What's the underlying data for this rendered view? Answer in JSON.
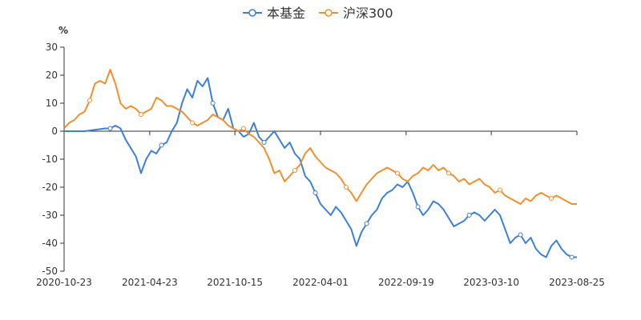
{
  "chart_data": {
    "type": "line",
    "title": "",
    "ylabel": "%",
    "xlabel": "",
    "ylim": [
      -50,
      30
    ],
    "yticks": [
      30,
      20,
      10,
      0,
      -10,
      -20,
      -30,
      -40,
      -50
    ],
    "xtick_labels": [
      "2020-10-23",
      "2021-04-23",
      "2021-10-15",
      "2022-04-01",
      "2022-09-19",
      "2023-03-10",
      "2023-08-25"
    ],
    "x_index_range": [
      0,
      100
    ],
    "xtick_index": [
      0,
      16.7,
      33.3,
      50,
      66.7,
      83.3,
      100
    ],
    "legend_position": "top-center",
    "series": [
      {
        "name": "本基金",
        "color": "#3b7fd8",
        "points": [
          [
            0,
            0
          ],
          [
            2,
            0
          ],
          [
            4,
            0
          ],
          [
            6,
            0.5
          ],
          [
            8,
            1
          ],
          [
            9,
            1
          ],
          [
            10,
            2
          ],
          [
            11,
            1
          ],
          [
            12,
            -3
          ],
          [
            13,
            -6
          ],
          [
            14,
            -9
          ],
          [
            15,
            -15
          ],
          [
            16,
            -10
          ],
          [
            17,
            -7
          ],
          [
            18,
            -8
          ],
          [
            19,
            -5
          ],
          [
            20,
            -4
          ],
          [
            21,
            0
          ],
          [
            22,
            3
          ],
          [
            23,
            10
          ],
          [
            24,
            15
          ],
          [
            25,
            12
          ],
          [
            26,
            18
          ],
          [
            27,
            16
          ],
          [
            28,
            19
          ],
          [
            29,
            10
          ],
          [
            30,
            5
          ],
          [
            31,
            4
          ],
          [
            32,
            8
          ],
          [
            33,
            1
          ],
          [
            34,
            0
          ],
          [
            35,
            -2
          ],
          [
            36,
            -1
          ],
          [
            37,
            3
          ],
          [
            38,
            -2
          ],
          [
            39,
            -4
          ],
          [
            40,
            -2
          ],
          [
            41,
            0
          ],
          [
            42,
            -3
          ],
          [
            43,
            -6
          ],
          [
            44,
            -4
          ],
          [
            45,
            -8
          ],
          [
            46,
            -10
          ],
          [
            47,
            -16
          ],
          [
            48,
            -18
          ],
          [
            49,
            -22
          ],
          [
            50,
            -26
          ],
          [
            51,
            -28
          ],
          [
            52,
            -30
          ],
          [
            53,
            -27
          ],
          [
            54,
            -29
          ],
          [
            55,
            -32
          ],
          [
            56,
            -35
          ],
          [
            57,
            -41
          ],
          [
            58,
            -36
          ],
          [
            59,
            -33
          ],
          [
            60,
            -30
          ],
          [
            61,
            -28
          ],
          [
            62,
            -24
          ],
          [
            63,
            -22
          ],
          [
            64,
            -21
          ],
          [
            65,
            -19
          ],
          [
            66,
            -20
          ],
          [
            67,
            -18
          ],
          [
            68,
            -22
          ],
          [
            69,
            -27
          ],
          [
            70,
            -30
          ],
          [
            71,
            -28
          ],
          [
            72,
            -25
          ],
          [
            73,
            -26
          ],
          [
            74,
            -28
          ],
          [
            75,
            -31
          ],
          [
            76,
            -34
          ],
          [
            77,
            -33
          ],
          [
            78,
            -32
          ],
          [
            79,
            -30
          ],
          [
            80,
            -29
          ],
          [
            81,
            -30
          ],
          [
            82,
            -32
          ],
          [
            83,
            -30
          ],
          [
            84,
            -28
          ],
          [
            85,
            -30
          ],
          [
            86,
            -35
          ],
          [
            87,
            -40
          ],
          [
            88,
            -38
          ],
          [
            89,
            -37
          ],
          [
            90,
            -40
          ],
          [
            91,
            -38
          ],
          [
            92,
            -42
          ],
          [
            93,
            -44
          ],
          [
            94,
            -45
          ],
          [
            95,
            -41
          ],
          [
            96,
            -39
          ],
          [
            97,
            -42
          ],
          [
            98,
            -44
          ],
          [
            99,
            -45
          ],
          [
            100,
            -45
          ]
        ]
      },
      {
        "name": "沪深300",
        "color": "#f28e2b",
        "points": [
          [
            0,
            1
          ],
          [
            1,
            3
          ],
          [
            2,
            4
          ],
          [
            3,
            6
          ],
          [
            4,
            7
          ],
          [
            5,
            11
          ],
          [
            6,
            17
          ],
          [
            7,
            18
          ],
          [
            8,
            17
          ],
          [
            9,
            22
          ],
          [
            10,
            17
          ],
          [
            11,
            10
          ],
          [
            12,
            8
          ],
          [
            13,
            9
          ],
          [
            14,
            8
          ],
          [
            15,
            6
          ],
          [
            16,
            7
          ],
          [
            17,
            8
          ],
          [
            18,
            12
          ],
          [
            19,
            11
          ],
          [
            20,
            9
          ],
          [
            21,
            9
          ],
          [
            22,
            8
          ],
          [
            23,
            7
          ],
          [
            24,
            5
          ],
          [
            25,
            3
          ],
          [
            26,
            2
          ],
          [
            27,
            3
          ],
          [
            28,
            4
          ],
          [
            29,
            6
          ],
          [
            30,
            5
          ],
          [
            31,
            4
          ],
          [
            32,
            2
          ],
          [
            33,
            1
          ],
          [
            34,
            0
          ],
          [
            35,
            1
          ],
          [
            36,
            -1
          ],
          [
            37,
            -2
          ],
          [
            38,
            -4
          ],
          [
            39,
            -6
          ],
          [
            40,
            -10
          ],
          [
            41,
            -15
          ],
          [
            42,
            -14
          ],
          [
            43,
            -18
          ],
          [
            44,
            -16
          ],
          [
            45,
            -14
          ],
          [
            46,
            -12
          ],
          [
            47,
            -8
          ],
          [
            48,
            -6
          ],
          [
            49,
            -9
          ],
          [
            50,
            -11
          ],
          [
            51,
            -13
          ],
          [
            52,
            -14
          ],
          [
            53,
            -15
          ],
          [
            54,
            -17
          ],
          [
            55,
            -20
          ],
          [
            56,
            -22
          ],
          [
            57,
            -25
          ],
          [
            58,
            -22
          ],
          [
            59,
            -19
          ],
          [
            60,
            -17
          ],
          [
            61,
            -15
          ],
          [
            62,
            -14
          ],
          [
            63,
            -13
          ],
          [
            64,
            -14
          ],
          [
            65,
            -15
          ],
          [
            66,
            -17
          ],
          [
            67,
            -18
          ],
          [
            68,
            -16
          ],
          [
            69,
            -15
          ],
          [
            70,
            -13
          ],
          [
            71,
            -14
          ],
          [
            72,
            -12
          ],
          [
            73,
            -14
          ],
          [
            74,
            -13
          ],
          [
            75,
            -15
          ],
          [
            76,
            -16
          ],
          [
            77,
            -18
          ],
          [
            78,
            -17
          ],
          [
            79,
            -19
          ],
          [
            80,
            -18
          ],
          [
            81,
            -17
          ],
          [
            82,
            -19
          ],
          [
            83,
            -20
          ],
          [
            84,
            -22
          ],
          [
            85,
            -21
          ],
          [
            86,
            -23
          ],
          [
            87,
            -24
          ],
          [
            88,
            -25
          ],
          [
            89,
            -26
          ],
          [
            90,
            -24
          ],
          [
            91,
            -25
          ],
          [
            92,
            -23
          ],
          [
            93,
            -22
          ],
          [
            94,
            -23
          ],
          [
            95,
            -24
          ],
          [
            96,
            -23
          ],
          [
            97,
            -24
          ],
          [
            98,
            -25
          ],
          [
            99,
            -26
          ],
          [
            100,
            -26
          ]
        ]
      }
    ]
  }
}
